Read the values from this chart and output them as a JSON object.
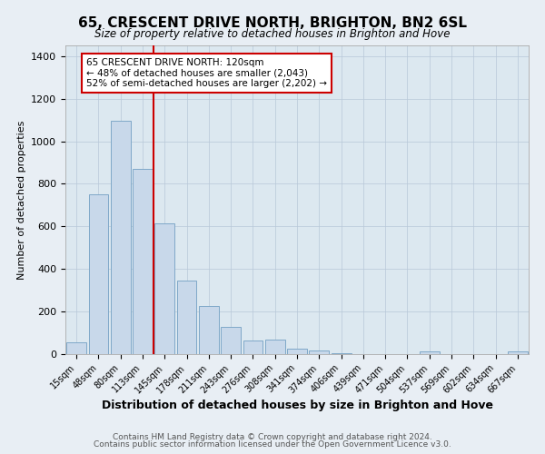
{
  "title": "65, CRESCENT DRIVE NORTH, BRIGHTON, BN2 6SL",
  "subtitle": "Size of property relative to detached houses in Brighton and Hove",
  "xlabel": "Distribution of detached houses by size in Brighton and Hove",
  "ylabel": "Number of detached properties",
  "bar_labels": [
    "15sqm",
    "48sqm",
    "80sqm",
    "113sqm",
    "145sqm",
    "178sqm",
    "211sqm",
    "243sqm",
    "276sqm",
    "308sqm",
    "341sqm",
    "374sqm",
    "406sqm",
    "439sqm",
    "471sqm",
    "504sqm",
    "537sqm",
    "569sqm",
    "602sqm",
    "634sqm",
    "667sqm"
  ],
  "bar_values": [
    55,
    750,
    1095,
    870,
    615,
    345,
    228,
    130,
    65,
    70,
    25,
    18,
    5,
    0,
    0,
    0,
    12,
    0,
    0,
    0,
    12
  ],
  "bar_color": "#c8d8ea",
  "bar_edge_color": "#7fa8c8",
  "vline_color": "#cc0000",
  "annotation_text": "65 CRESCENT DRIVE NORTH: 120sqm\n← 48% of detached houses are smaller (2,043)\n52% of semi-detached houses are larger (2,202) →",
  "annotation_box_color": "#ffffff",
  "annotation_box_edge": "#cc0000",
  "ylim": [
    0,
    1450
  ],
  "yticks": [
    0,
    200,
    400,
    600,
    800,
    1000,
    1200,
    1400
  ],
  "footer1": "Contains HM Land Registry data © Crown copyright and database right 2024.",
  "footer2": "Contains public sector information licensed under the Open Government Licence v3.0.",
  "bg_color": "#e8eef4",
  "plot_bg_color": "#dce8f0"
}
